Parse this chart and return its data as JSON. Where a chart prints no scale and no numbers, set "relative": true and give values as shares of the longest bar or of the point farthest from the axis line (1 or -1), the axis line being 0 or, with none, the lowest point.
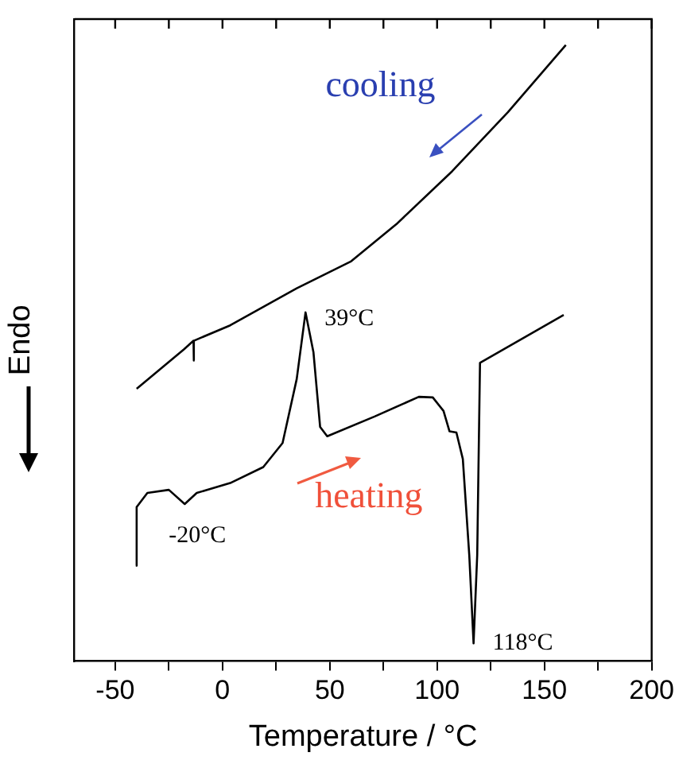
{
  "chart_data": {
    "type": "line",
    "relative": true,
    "xlabel": "Temperature / °C",
    "ylabel": "Endo",
    "xlim": [
      -69,
      200
    ],
    "xticks": [
      -50,
      {
        "value": -25,
        "label": null
      },
      0,
      {
        "value": 25,
        "label": null
      },
      50,
      {
        "value": 75,
        "label": null
      },
      100,
      {
        "value": 125,
        "label": null
      },
      150,
      {
        "value": 175,
        "label": null
      },
      200
    ],
    "grid": false,
    "legend": false,
    "marker": "none",
    "line_style": "solid",
    "series": [
      {
        "color": "#000000",
        "x": [
          -40,
          -18,
          -13.5,
          -13.4,
          -13.3,
          3.6,
          34.6,
          60,
          81,
          107,
          133,
          160
        ],
        "values": [
          0.442,
          0.506,
          0.52,
          0.488,
          0.52,
          0.545,
          0.605,
          0.649,
          0.709,
          0.795,
          0.891,
          1
        ]
      },
      {
        "color": "#000000",
        "x": [
          -40.4,
          -40,
          -35,
          -25,
          -17.6,
          -12,
          3.6,
          19,
          28,
          34.6,
          38.7,
          42.4,
          45.5,
          48.8,
          70.9,
          91.5,
          98,
          103,
          105.8,
          109,
          112,
          115,
          117,
          118.7,
          120,
          159
        ],
        "values": [
          0.155,
          0.25,
          0.273,
          0.278,
          0.255,
          0.273,
          0.289,
          0.315,
          0.354,
          0.458,
          0.566,
          0.501,
          0.38,
          0.365,
          0.397,
          0.429,
          0.428,
          0.406,
          0.373,
          0.371,
          0.328,
          0.172,
          0.029,
          0.172,
          0.484,
          0.562
        ]
      }
    ],
    "annotations": [
      {
        "text": "39°C",
        "x": 38.7,
        "y": 0.566
      },
      {
        "text": "-20°C",
        "x": -17.6,
        "y": 0.255
      },
      {
        "text": "118°C",
        "x": 117,
        "y": 0.029
      },
      "cooling",
      "heating"
    ]
  }
}
